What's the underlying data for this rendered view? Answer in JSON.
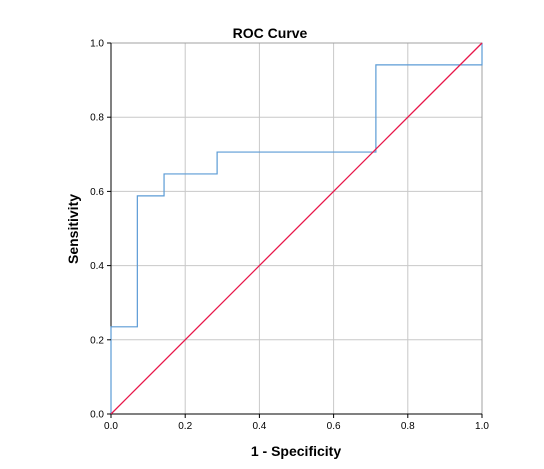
{
  "chart_data": {
    "type": "line",
    "title": "ROC Curve",
    "xlabel": "1 - Specificity",
    "ylabel": "Sensitivity",
    "xlim": [
      0,
      1
    ],
    "ylim": [
      0,
      1
    ],
    "x_ticks": [
      "0.0",
      "0.2",
      "0.4",
      "0.6",
      "0.8",
      "1.0"
    ],
    "y_ticks": [
      "0.0",
      "0.2",
      "0.4",
      "0.6",
      "0.8",
      "1.0"
    ],
    "grid": true,
    "series": [
      {
        "color": "#5b9bd5",
        "interpolation": "step",
        "x": [
          0,
          0,
          0.071,
          0.071,
          0.143,
          0.143,
          0.286,
          0.286,
          0.714,
          0.714,
          1.0,
          1.0
        ],
        "y": [
          0,
          0.235,
          0.235,
          0.588,
          0.588,
          0.647,
          0.647,
          0.706,
          0.706,
          0.941,
          0.941,
          1.0
        ]
      },
      {
        "color": "#e8174a",
        "interpolation": "linear",
        "x": [
          0,
          1
        ],
        "y": [
          0,
          1
        ]
      }
    ]
  }
}
